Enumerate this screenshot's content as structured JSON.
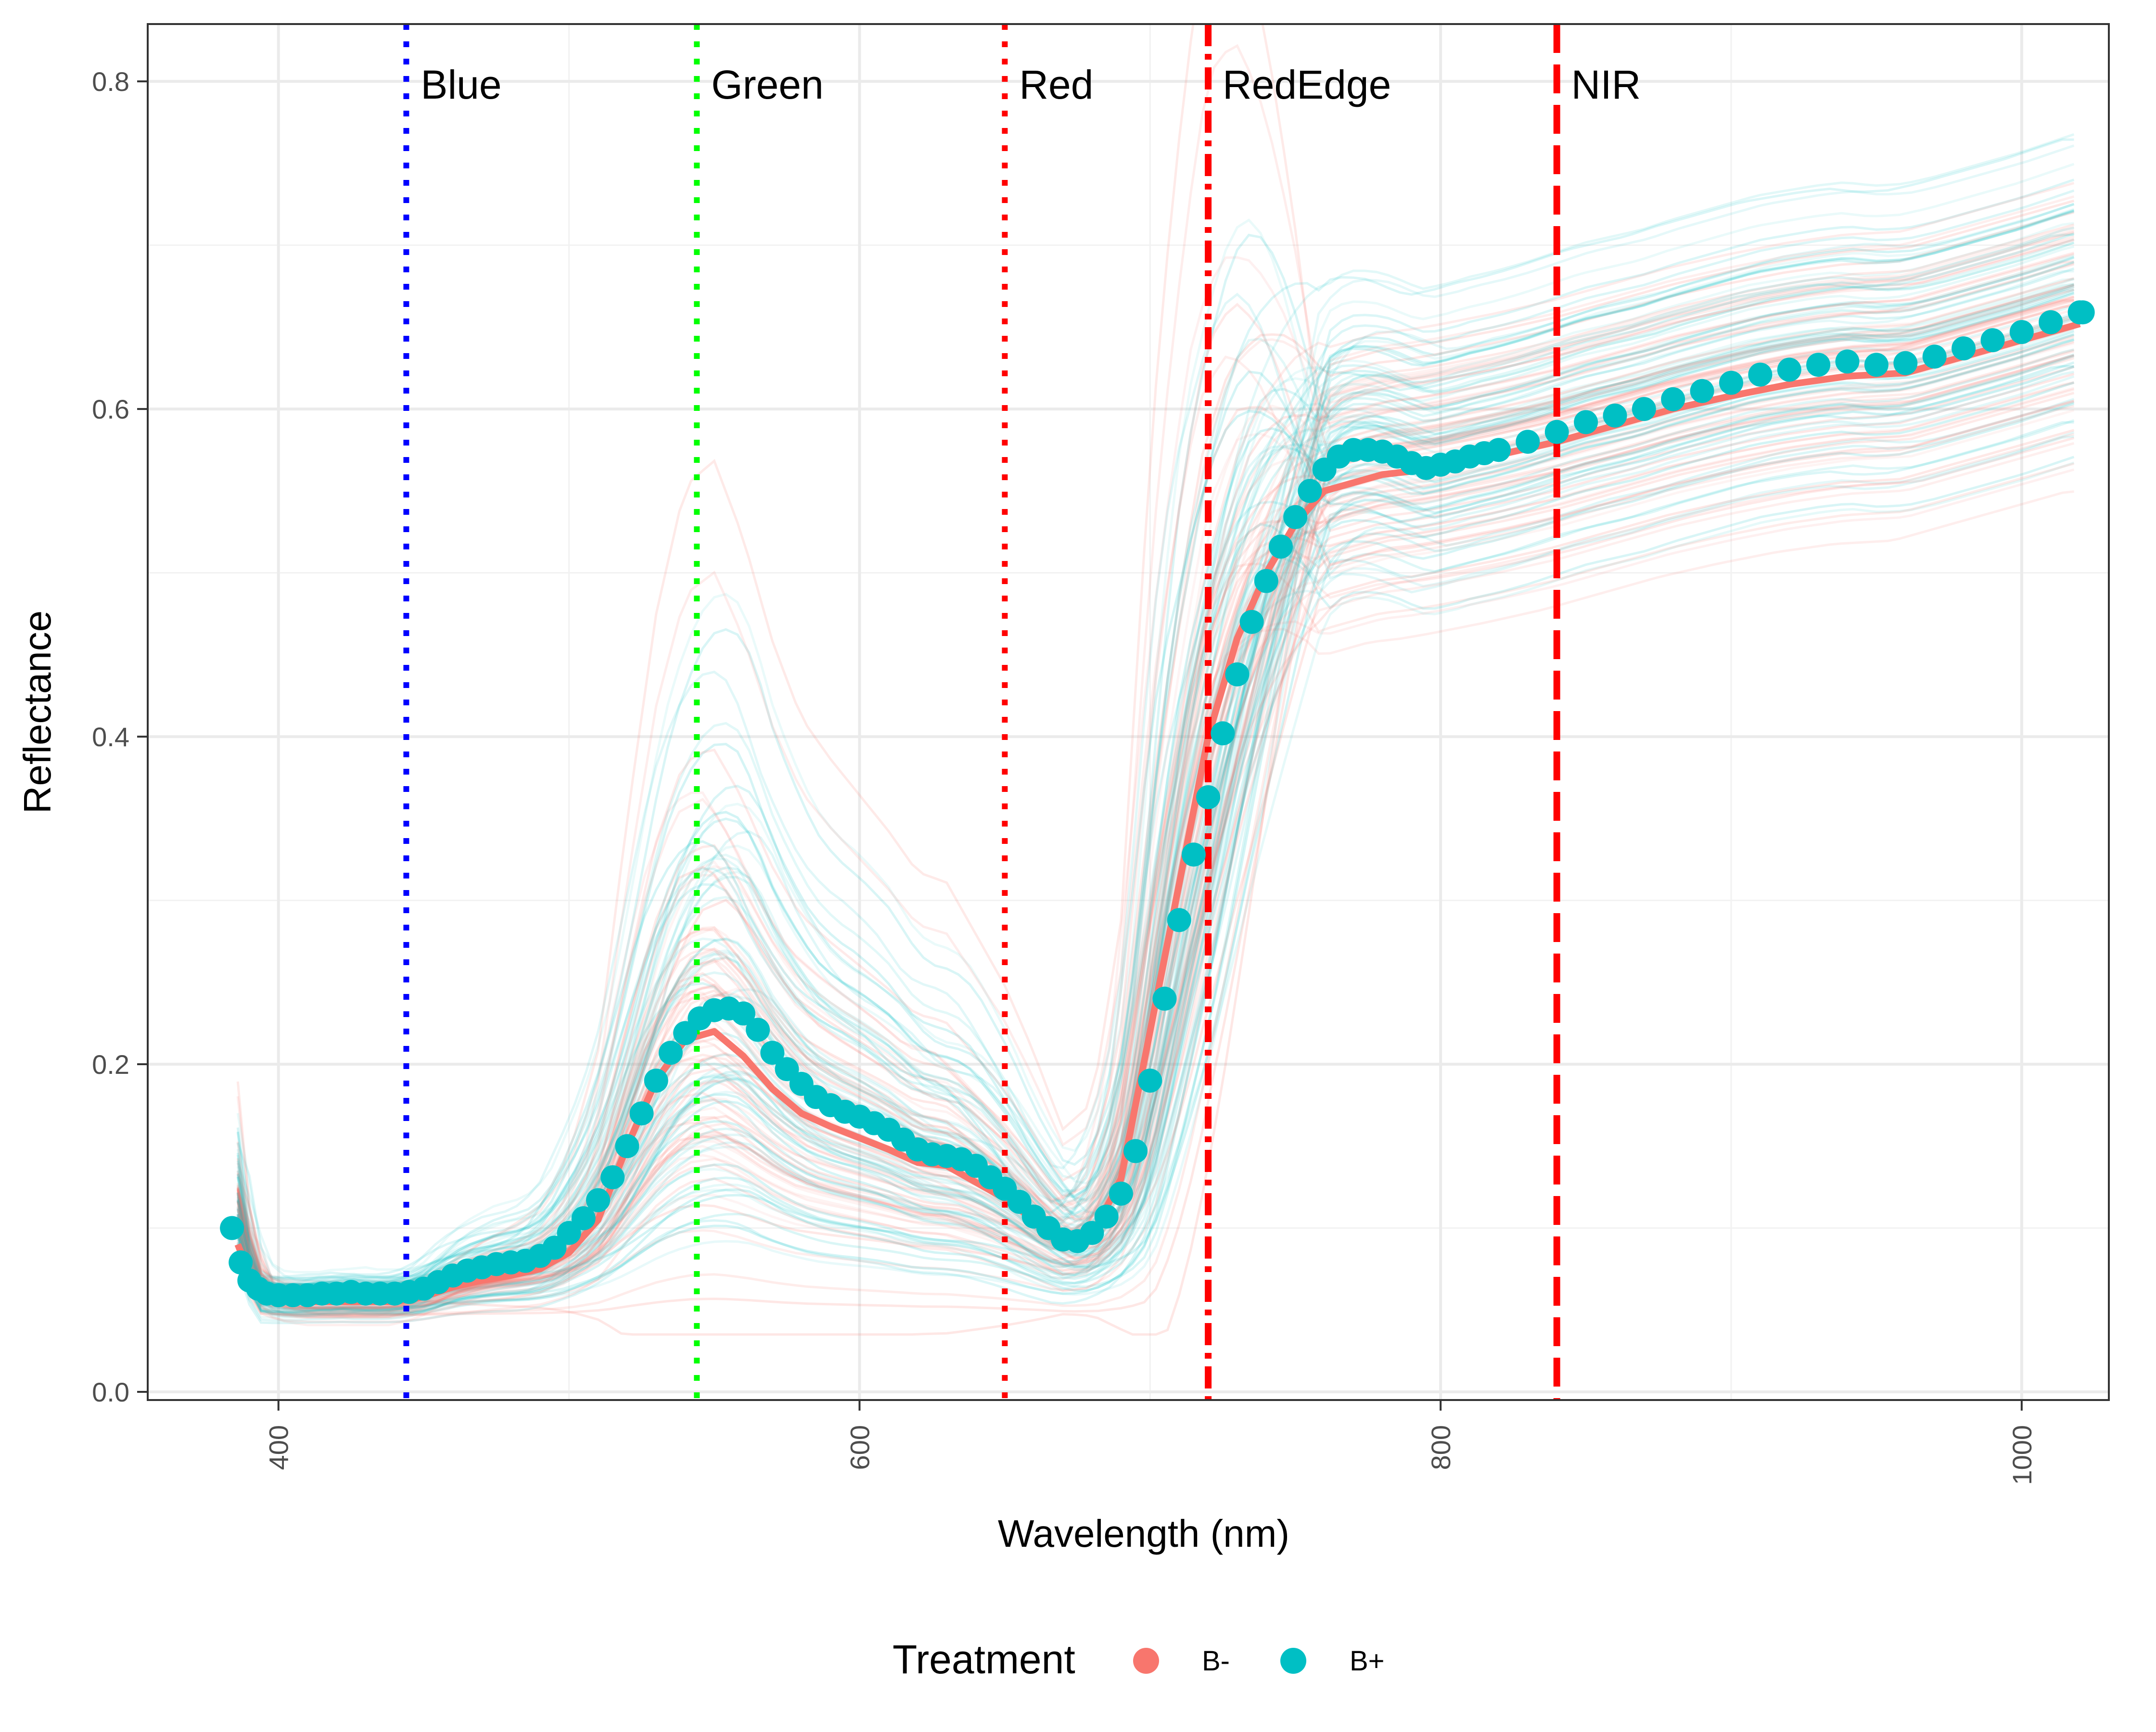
{
  "chart_data": {
    "type": "line",
    "xlabel": "Wavelength (nm)",
    "ylabel": "Reflectance",
    "xlim": [
      355,
      1030
    ],
    "ylim": [
      -0.005,
      0.835
    ],
    "x_ticks": [
      400,
      600,
      800,
      1000
    ],
    "x_tick_labels": [
      "400",
      "600",
      "800",
      "1000"
    ],
    "y_ticks": [
      0.0,
      0.2,
      0.4,
      0.6,
      0.8
    ],
    "y_tick_labels": [
      "0.0",
      "0.2",
      "0.4",
      "0.6",
      "0.8"
    ],
    "grid": true,
    "legend": {
      "position": "bottom",
      "title": "Treatment",
      "entries": [
        {
          "label": "B-",
          "color": "#F8766D"
        },
        {
          "label": "B+",
          "color": "#00BFC4"
        }
      ]
    },
    "band_lines": [
      {
        "label": "Blue",
        "x": 444,
        "color": "#0000ff",
        "style": "dotted"
      },
      {
        "label": "Green",
        "x": 544,
        "color": "#00ff00",
        "style": "dotted"
      },
      {
        "label": "Red",
        "x": 650,
        "color": "#ff0000",
        "style": "dotted"
      },
      {
        "label": "RedEdge",
        "x": 720,
        "color": "#ff0000",
        "style": "dashdot"
      },
      {
        "label": "NIR",
        "x": 840,
        "color": "#ff0000",
        "style": "dashed"
      }
    ],
    "series": [
      {
        "name": "B-",
        "color": "#F8766D",
        "mean_points": [
          [
            386,
            0.09
          ],
          [
            390,
            0.072
          ],
          [
            395,
            0.062
          ],
          [
            400,
            0.057
          ],
          [
            410,
            0.055
          ],
          [
            420,
            0.055
          ],
          [
            430,
            0.055
          ],
          [
            440,
            0.055
          ],
          [
            450,
            0.058
          ],
          [
            460,
            0.064
          ],
          [
            470,
            0.068
          ],
          [
            480,
            0.071
          ],
          [
            490,
            0.075
          ],
          [
            500,
            0.085
          ],
          [
            510,
            0.105
          ],
          [
            520,
            0.15
          ],
          [
            530,
            0.19
          ],
          [
            540,
            0.215
          ],
          [
            550,
            0.22
          ],
          [
            560,
            0.205
          ],
          [
            570,
            0.185
          ],
          [
            580,
            0.17
          ],
          [
            590,
            0.162
          ],
          [
            600,
            0.155
          ],
          [
            610,
            0.148
          ],
          [
            620,
            0.14
          ],
          [
            630,
            0.138
          ],
          [
            640,
            0.128
          ],
          [
            650,
            0.118
          ],
          [
            660,
            0.105
          ],
          [
            670,
            0.09
          ],
          [
            680,
            0.095
          ],
          [
            690,
            0.13
          ],
          [
            700,
            0.22
          ],
          [
            710,
            0.31
          ],
          [
            720,
            0.4
          ],
          [
            730,
            0.46
          ],
          [
            740,
            0.5
          ],
          [
            750,
            0.53
          ],
          [
            760,
            0.55
          ],
          [
            770,
            0.555
          ],
          [
            780,
            0.56
          ],
          [
            790,
            0.562
          ],
          [
            800,
            0.565
          ],
          [
            820,
            0.572
          ],
          [
            840,
            0.58
          ],
          [
            860,
            0.59
          ],
          [
            880,
            0.6
          ],
          [
            900,
            0.608
          ],
          [
            920,
            0.615
          ],
          [
            940,
            0.62
          ],
          [
            960,
            0.622
          ],
          [
            980,
            0.632
          ],
          [
            1000,
            0.642
          ],
          [
            1020,
            0.652
          ]
        ]
      },
      {
        "name": "B+",
        "color": "#00BFC4",
        "mean_points": [
          [
            384,
            0.1
          ],
          [
            387,
            0.079
          ],
          [
            390,
            0.068
          ],
          [
            393,
            0.063
          ],
          [
            396,
            0.06
          ],
          [
            400,
            0.059
          ],
          [
            405,
            0.059
          ],
          [
            410,
            0.059
          ],
          [
            415,
            0.06
          ],
          [
            420,
            0.06
          ],
          [
            425,
            0.061
          ],
          [
            430,
            0.06
          ],
          [
            435,
            0.06
          ],
          [
            440,
            0.06
          ],
          [
            445,
            0.061
          ],
          [
            450,
            0.063
          ],
          [
            455,
            0.067
          ],
          [
            460,
            0.071
          ],
          [
            465,
            0.074
          ],
          [
            470,
            0.076
          ],
          [
            475,
            0.078
          ],
          [
            480,
            0.079
          ],
          [
            485,
            0.08
          ],
          [
            490,
            0.083
          ],
          [
            495,
            0.088
          ],
          [
            500,
            0.097
          ],
          [
            505,
            0.106
          ],
          [
            510,
            0.117
          ],
          [
            515,
            0.131
          ],
          [
            520,
            0.15
          ],
          [
            525,
            0.17
          ],
          [
            530,
            0.19
          ],
          [
            535,
            0.207
          ],
          [
            540,
            0.219
          ],
          [
            545,
            0.228
          ],
          [
            550,
            0.233
          ],
          [
            555,
            0.234
          ],
          [
            560,
            0.231
          ],
          [
            565,
            0.221
          ],
          [
            570,
            0.207
          ],
          [
            575,
            0.197
          ],
          [
            580,
            0.188
          ],
          [
            585,
            0.18
          ],
          [
            590,
            0.175
          ],
          [
            595,
            0.171
          ],
          [
            600,
            0.168
          ],
          [
            605,
            0.164
          ],
          [
            610,
            0.16
          ],
          [
            615,
            0.154
          ],
          [
            620,
            0.148
          ],
          [
            625,
            0.145
          ],
          [
            630,
            0.144
          ],
          [
            635,
            0.142
          ],
          [
            640,
            0.138
          ],
          [
            645,
            0.131
          ],
          [
            650,
            0.124
          ],
          [
            655,
            0.116
          ],
          [
            660,
            0.107
          ],
          [
            665,
            0.1
          ],
          [
            670,
            0.093
          ],
          [
            675,
            0.092
          ],
          [
            680,
            0.097
          ],
          [
            685,
            0.107
          ],
          [
            690,
            0.121
          ],
          [
            695,
            0.147
          ],
          [
            700,
            0.19
          ],
          [
            705,
            0.24
          ],
          [
            710,
            0.288
          ],
          [
            715,
            0.328
          ],
          [
            720,
            0.363
          ],
          [
            725,
            0.402
          ],
          [
            730,
            0.438
          ],
          [
            735,
            0.47
          ],
          [
            740,
            0.495
          ],
          [
            745,
            0.516
          ],
          [
            750,
            0.534
          ],
          [
            755,
            0.55
          ],
          [
            760,
            0.563
          ],
          [
            765,
            0.571
          ],
          [
            770,
            0.575
          ],
          [
            775,
            0.575
          ],
          [
            780,
            0.574
          ],
          [
            785,
            0.571
          ],
          [
            790,
            0.567
          ],
          [
            795,
            0.564
          ],
          [
            800,
            0.566
          ],
          [
            805,
            0.568
          ],
          [
            810,
            0.571
          ],
          [
            815,
            0.573
          ],
          [
            820,
            0.575
          ],
          [
            830,
            0.58
          ],
          [
            840,
            0.586
          ],
          [
            850,
            0.592
          ],
          [
            860,
            0.596
          ],
          [
            870,
            0.6
          ],
          [
            880,
            0.606
          ],
          [
            890,
            0.611
          ],
          [
            900,
            0.616
          ],
          [
            910,
            0.621
          ],
          [
            920,
            0.624
          ],
          [
            930,
            0.627
          ],
          [
            940,
            0.629
          ],
          [
            950,
            0.627
          ],
          [
            960,
            0.628
          ],
          [
            970,
            0.632
          ],
          [
            980,
            0.637
          ],
          [
            990,
            0.642
          ],
          [
            1000,
            0.647
          ],
          [
            1010,
            0.653
          ],
          [
            1020,
            0.659
          ],
          [
            1021,
            0.659
          ]
        ]
      }
    ]
  }
}
